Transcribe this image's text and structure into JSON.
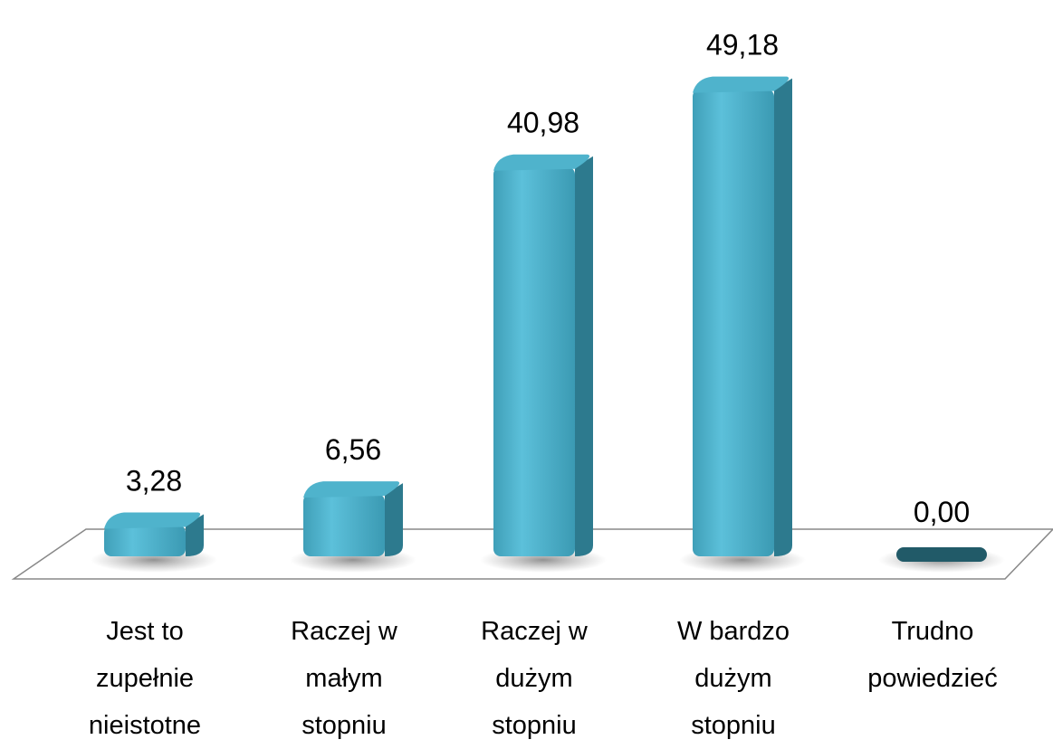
{
  "chart_data": {
    "type": "bar",
    "categories": [
      "Jest to zupełnie nieistotne",
      "Raczej w małym stopniu",
      "Raczej w dużym stopniu",
      "W bardzo dużym stopniu",
      "Trudno powiedzieć"
    ],
    "values": [
      3.28,
      6.56,
      40.98,
      49.18,
      0.0
    ],
    "value_labels": [
      "3,28",
      "6,56",
      "40,98",
      "49,18",
      "0,00"
    ],
    "color": "#4bacc6"
  }
}
